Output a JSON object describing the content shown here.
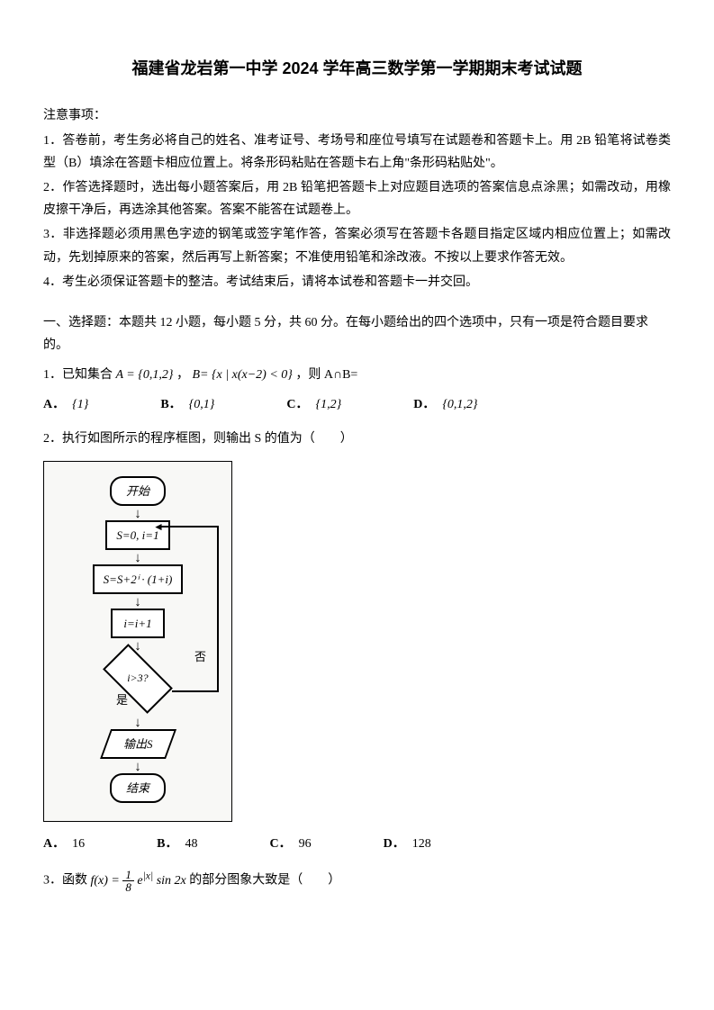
{
  "title": "福建省龙岩第一中学 2024 学年高三数学第一学期期末考试试题",
  "notice": {
    "heading": "注意事项：",
    "items": [
      "1．答卷前，考生务必将自己的姓名、准考证号、考场号和座位号填写在试题卷和答题卡上。用 2B 铅笔将试卷类型（B）填涂在答题卡相应位置上。将条形码粘贴在答题卡右上角\"条形码粘贴处\"。",
      "2．作答选择题时，选出每小题答案后，用 2B 铅笔把答题卡上对应题目选项的答案信息点涂黑；如需改动，用橡皮擦干净后，再选涂其他答案。答案不能答在试题卷上。",
      "3．非选择题必须用黑色字迹的钢笔或签字笔作答，答案必须写在答题卡各题目指定区域内相应位置上；如需改动，先划掉原来的答案，然后再写上新答案；不准使用铅笔和涂改液。不按以上要求作答无效。",
      "4．考生必须保证答题卡的整洁。考试结束后，请将本试卷和答题卡一并交回。"
    ]
  },
  "section1": "一、选择题：本题共 12 小题，每小题 5 分，共 60 分。在每小题给出的四个选项中，只有一项是符合题目要求的。",
  "q1": {
    "prefix": "1．已知集合 ",
    "setA": "A = {0,1,2}",
    "mid": "，",
    "setB": "B= {x | x(x−2) < 0}",
    "suffix": "，则 A∩B=",
    "options": {
      "A": "{1}",
      "B": "{0,1}",
      "C": "{1,2}",
      "D": "{0,1,2}"
    }
  },
  "q2": {
    "text": "2．执行如图所示的程序框图，则输出 S 的值为（　　）",
    "flowchart": {
      "start": "开始",
      "init": "S=0, i=1",
      "calc": "S=S+2ⁱ · (1+i)",
      "inc": "i=i+1",
      "cond": "i>3?",
      "no": "否",
      "yes": "是",
      "output": "输出S",
      "end": "结束"
    },
    "options": {
      "A": "16",
      "B": "48",
      "C": "96",
      "D": "128"
    }
  },
  "q3": {
    "prefix": "3．函数 ",
    "suffix": " 的部分图象大致是（　　）"
  }
}
